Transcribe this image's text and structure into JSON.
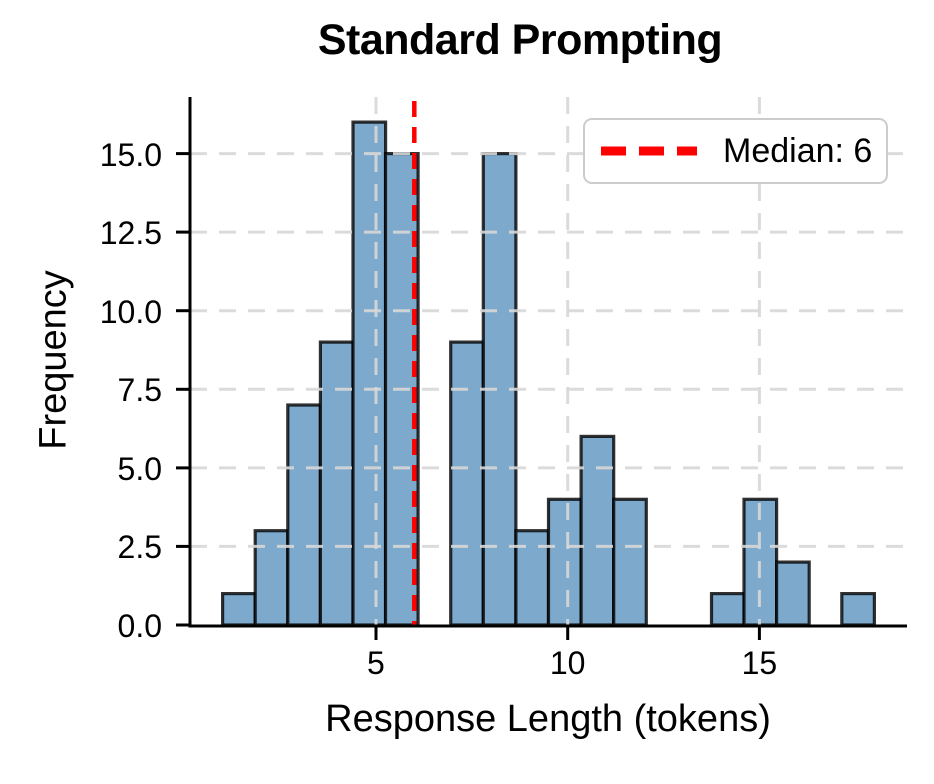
{
  "chart_data": {
    "type": "bar",
    "subtype": "histogram",
    "title": "Standard Prompting",
    "xlabel": "Response Length (tokens)",
    "ylabel": "Frequency",
    "bin_edges": [
      1.0,
      1.85,
      2.7,
      3.55,
      4.4,
      5.25,
      6.1,
      6.95,
      7.8,
      8.65,
      9.5,
      10.35,
      11.2,
      12.05,
      12.9,
      13.75,
      14.6,
      15.45,
      16.3,
      17.15,
      18.0
    ],
    "counts": [
      1,
      3,
      7,
      9,
      16,
      15,
      0,
      9,
      15,
      3,
      4,
      6,
      4,
      0,
      0,
      1,
      4,
      2,
      0,
      1
    ],
    "total_count": 100,
    "median_value": 6,
    "median_line_x": 6,
    "x_ticks": [
      5,
      10,
      15
    ],
    "x_tick_labels": [
      "5",
      "10",
      "15"
    ],
    "y_ticks": [
      0,
      2.5,
      5,
      7.5,
      10,
      12.5,
      15
    ],
    "y_tick_labels": [
      "0.0",
      "2.5",
      "5.0",
      "7.5",
      "10.0",
      "12.5",
      "15.0"
    ],
    "xlim": [
      0.15,
      18.85
    ],
    "ylim": [
      0,
      16.8
    ],
    "grid": true,
    "grid_style": "dashed",
    "legend": {
      "label": "Median: 6",
      "position": "upper right"
    },
    "colors": {
      "bar_fill": "#7DA9CC",
      "bar_edge": "rgba(0,0,0,0.8)",
      "median_line": "#FF0000",
      "grid": "#D8D8D8",
      "axis": "#000000",
      "text": "#000000",
      "legend_border": "#CCCCCC",
      "legend_bg": "#FFFFFF"
    }
  }
}
